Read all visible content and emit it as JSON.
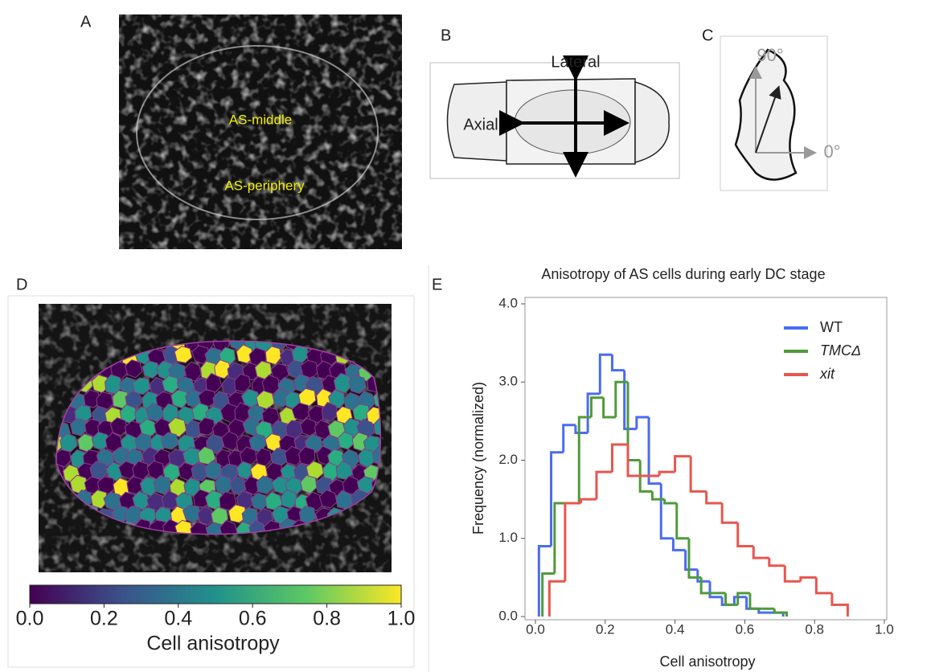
{
  "panels": {
    "labels": [
      "A",
      "B",
      "C",
      "D",
      "E"
    ],
    "a_regions": [
      "AS-middle",
      "AS-periphery"
    ],
    "b_axes": [
      "Lateral",
      "Axial"
    ],
    "c_angles": [
      "90°",
      "0°"
    ],
    "colorbar": {
      "label": "Cell anisotropy",
      "lim": [
        0,
        1
      ],
      "ticks": [
        {
          "value": 0,
          "label": "0.0"
        },
        0.2,
        0.4,
        0.6,
        0.8,
        {
          "value": 1,
          "label": "1.0"
        }
      ]
    }
  },
  "chart_data": {
    "type": "histogram",
    "title": "Anisotropy of AS cells during early DC stage",
    "xlabel": "Cell anisotropy",
    "ylabel": "Frequency (normalized)",
    "xlim": [
      0,
      1
    ],
    "ylim": [
      0,
      4
    ],
    "xticks": [
      {
        "value": 0,
        "label": "0.0"
      },
      0.2,
      0.4,
      0.6,
      0.8,
      {
        "value": 1,
        "label": "1.0"
      }
    ],
    "yticks": [
      {
        "value": 0,
        "label": "0.0"
      },
      {
        "value": 1,
        "label": "1.0"
      },
      {
        "value": 2,
        "label": "2.0"
      },
      {
        "value": 3,
        "label": "3.0"
      },
      {
        "value": 4,
        "label": "4.0"
      }
    ],
    "legend": "upper right",
    "series": [
      {
        "name": "WT",
        "color": "#4a6cf0",
        "bins": [
          0.01,
          0.045,
          0.08,
          0.115,
          0.15,
          0.185,
          0.22,
          0.255,
          0.29,
          0.325,
          0.36,
          0.395,
          0.43,
          0.465,
          0.5,
          0.535,
          0.57,
          0.605,
          0.64,
          0.675,
          0.71
        ],
        "values": [
          0.9,
          2.1,
          2.45,
          2.35,
          2.85,
          3.35,
          3.15,
          2.4,
          2.55,
          1.7,
          1.0,
          0.85,
          0.6,
          0.45,
          0.25,
          0.15,
          0.25,
          0.1,
          0.05,
          0.05
        ]
      },
      {
        "name": "TMCΔ",
        "color": "#4f9a3a",
        "bins": [
          0.02,
          0.055,
          0.09,
          0.125,
          0.16,
          0.195,
          0.23,
          0.265,
          0.3,
          0.335,
          0.37,
          0.405,
          0.44,
          0.475,
          0.51,
          0.545,
          0.58,
          0.615,
          0.65,
          0.685,
          0.72
        ],
        "values": [
          0.55,
          1.45,
          1.45,
          2.55,
          2.8,
          2.55,
          3.0,
          2.0,
          1.6,
          1.5,
          1.45,
          1.0,
          0.5,
          0.3,
          0.3,
          0.15,
          0.3,
          0.1,
          0.1,
          0.05
        ]
      },
      {
        "name": "xit",
        "color": "#e8564e",
        "bins": [
          0.04,
          0.085,
          0.13,
          0.175,
          0.22,
          0.265,
          0.31,
          0.355,
          0.4,
          0.445,
          0.49,
          0.535,
          0.58,
          0.625,
          0.67,
          0.715,
          0.76,
          0.805,
          0.85,
          0.895
        ],
        "values": [
          0.45,
          1.45,
          1.5,
          1.85,
          2.2,
          1.8,
          1.8,
          1.85,
          2.05,
          1.6,
          1.45,
          1.2,
          0.9,
          0.75,
          0.65,
          0.45,
          0.5,
          0.3,
          0.15
        ]
      }
    ]
  }
}
